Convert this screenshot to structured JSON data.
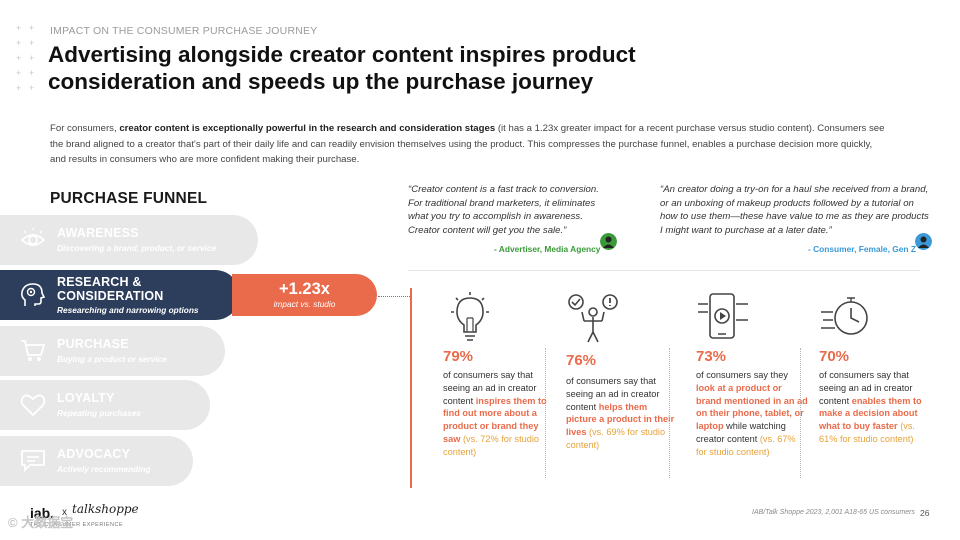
{
  "header": {
    "eyebrow": "IMPACT ON THE CONSUMER PURCHASE JOURNEY",
    "title": "Advertising alongside creator content inspires product consideration and speeds up the purchase journey"
  },
  "intro": {
    "p1": "For consumers, ",
    "p2": "creator content is exceptionally powerful in the research and consideration stages",
    "p3": " (it has a 1.23x greater impact for a recent purchase versus studio content). Consumers see the brand aligned to a creator that's part of their daily life and can readily envision themselves using the product. This compresses the purchase funnel, enables a purchase decision more quickly, and results in consumers who are more confident making their purchase."
  },
  "funnel": {
    "heading": "PURCHASE FUNNEL",
    "stages": [
      {
        "name": "AWARENESS",
        "desc": "Discovering a brand, product, or service",
        "icon": "eye-icon"
      },
      {
        "name": "RESEARCH &",
        "name2": "CONSIDERATION",
        "desc": "Researching and narrowing options",
        "icon": "brain-head-icon"
      },
      {
        "name": "PURCHASE",
        "desc": "Buying a product or service",
        "icon": "cart-icon"
      },
      {
        "name": "LOYALTY",
        "desc": "Repeating purchases",
        "icon": "heart-icon"
      },
      {
        "name": "ADVOCACY",
        "desc": "Actively recommending",
        "icon": "chat-icon"
      }
    ],
    "impact_value": "+1.23x",
    "impact_label": "impact vs. studio"
  },
  "quotes": [
    {
      "l1": "“Creator content is a fast track to conversion.",
      "l2": "For traditional brand marketers, it eliminates",
      "l3": "what you try to accomplish in awareness.",
      "l4": "Creator content will get you the sale.”",
      "attribution": "- Advertiser, Media Agency"
    },
    {
      "l1": "“An creator doing a try-on for a haul she received from a brand,",
      "l2": "or an unboxing of makeup products followed by a tutorial on",
      "l3": "how to use them—these have value to me as they are products",
      "l4": "I might want to purchase at a later date.”",
      "attribution": "- Consumer, Female, Gen Z"
    }
  ],
  "stats": [
    {
      "pct": "79%",
      "pre": "of consumers say that seeing an ad in creator content ",
      "hl": "inspires them to find out more about a product or brand they saw",
      "cmp": "(vs. 72% for studio content)",
      "icon": "lightbulb-icon"
    },
    {
      "pct": "76%",
      "pre": "of consumers say that seeing an ad in creator content ",
      "hl": "helps them picture a product in their lives",
      "cmp": "(vs. 69% for studio content)",
      "icon": "person-decision-icon"
    },
    {
      "pct": "73%",
      "pre": "of consumers say they ",
      "hl": "look at a product or brand mentioned in an ad on their phone, tablet, or laptop",
      "mid": " while watching creator content ",
      "cmp": "(vs. 67% for studio content)",
      "icon": "phone-video-icon"
    },
    {
      "pct": "70%",
      "pre": "of consumers say that seeing an ad in creator content ",
      "hl": "enables them to make a decision about what to buy faster",
      "cmp": "(vs. 61% for studio content)",
      "icon": "fast-clock-icon"
    }
  ],
  "footer": {
    "logo_iab": "iab.",
    "logo_x": "x",
    "logo_ts": "talkshoppe",
    "logo_sub": "THE CONSUMER EXPERIENCE",
    "source": "IAB/Talk Shoppe 2023, 2,001 A18-65 US consumers",
    "page": "26",
    "watermark": "© 大数据宝"
  },
  "colors": {
    "accent": "#ea6b4b",
    "navy": "#2c3e5c",
    "stage_gray": "#e8e8e8",
    "green": "#3a9a3a",
    "blue": "#3a9ad9",
    "gold": "#e8a23a"
  }
}
